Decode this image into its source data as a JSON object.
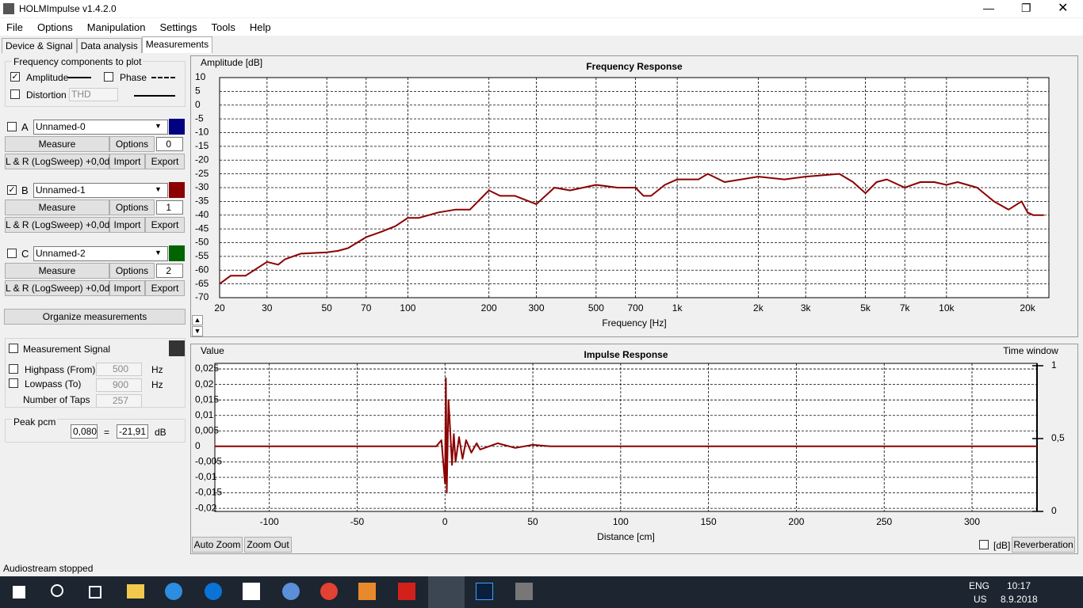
{
  "window": {
    "title": "HOLMImpulse v1.4.2.0"
  },
  "menu": [
    "File",
    "Options",
    "Manipulation",
    "Settings",
    "Tools",
    "Help"
  ],
  "tabs": [
    "Device & Signal",
    "Data analysis",
    "Measurements"
  ],
  "components": {
    "title": "Frequency components to plot",
    "amplitude": "Amplitude",
    "phase": "Phase",
    "distortion": "Distortion",
    "thd": "THD"
  },
  "measurements": [
    {
      "letter": "A",
      "name": "Unnamed-0",
      "color": "#000080",
      "checked": false,
      "measure": "Measure",
      "options": "Options",
      "index": "0",
      "signal": "L & R (LogSweep) +0,0dB",
      "import": "Import",
      "export": "Export"
    },
    {
      "letter": "B",
      "name": "Unnamed-1",
      "color": "#8b0000",
      "checked": true,
      "measure": "Measure",
      "options": "Options",
      "index": "1",
      "signal": "L & R (LogSweep) +0,0dB",
      "import": "Import",
      "export": "Export"
    },
    {
      "letter": "C",
      "name": "Unnamed-2",
      "color": "#006400",
      "checked": false,
      "measure": "Measure",
      "options": "Options",
      "index": "2",
      "signal": "L & R (LogSweep) +0,0dB",
      "import": "Import",
      "export": "Export"
    }
  ],
  "organize": "Organize measurements",
  "signal": {
    "label": "Measurement Signal",
    "highpass": "Highpass (From)",
    "highpass_value": "500",
    "lowpass": "Lowpass (To)",
    "lowpass_value": "900",
    "taps": "Number of Taps",
    "taps_value": "257",
    "hz": "Hz"
  },
  "peak": {
    "label": "Peak pcm",
    "pcm": "0,080",
    "eq": "=",
    "db_value": "-21,91",
    "db": "dB"
  },
  "frequency_chart": {
    "type": "line",
    "title": "Frequency Response",
    "y_label": "Amplitude [dB]",
    "x_label": "Frequency [Hz]",
    "log_x": true,
    "grid": true,
    "xlim": [
      20,
      24000
    ],
    "ylim": [
      -70,
      10
    ],
    "yticks": [
      10,
      5,
      0,
      -5,
      -10,
      -15,
      -20,
      -25,
      -30,
      -35,
      -40,
      -45,
      -50,
      -55,
      -60,
      -65,
      -70
    ],
    "xticks": [
      20,
      30,
      50,
      70,
      100,
      200,
      300,
      500,
      700,
      {
        "value": 1000,
        "label": "1k"
      },
      {
        "value": 2000,
        "label": "2k"
      },
      {
        "value": 3000,
        "label": "3k"
      },
      {
        "value": 5000,
        "label": "5k"
      },
      {
        "value": 7000,
        "label": "7k"
      },
      {
        "value": 10000,
        "label": "10k"
      },
      {
        "value": 20000,
        "label": "20k"
      }
    ],
    "series": [
      {
        "color": "#8b0000",
        "x": [
          20,
          22,
          25,
          30,
          33,
          35,
          40,
          50,
          55,
          60,
          70,
          80,
          90,
          100,
          110,
          130,
          150,
          170,
          200,
          220,
          250,
          300,
          350,
          400,
          500,
          600,
          700,
          750,
          800,
          900,
          1000,
          1200,
          1300,
          1500,
          2000,
          2500,
          3000,
          4000,
          4500,
          5000,
          5500,
          6000,
          7000,
          8000,
          9000,
          10000,
          11000,
          13000,
          15000,
          17000,
          19000,
          20000,
          21000,
          23000
        ],
        "values": [
          -65,
          -62,
          -62,
          -57,
          -58,
          -56,
          -54,
          -53.5,
          -53,
          -52,
          -48,
          -46,
          -44,
          -41,
          -41,
          -39,
          -38,
          -38,
          -31,
          -33,
          -33,
          -36,
          -30,
          -31,
          -29,
          -30,
          -30,
          -33,
          -33,
          -29,
          -27,
          -27,
          -25,
          -28,
          -26,
          -27,
          -26,
          -25,
          -28,
          -32,
          -28,
          -27,
          -30,
          -28,
          -28,
          -29,
          -28,
          -30,
          -35,
          -38,
          -35,
          -39,
          -40,
          -40
        ]
      }
    ]
  },
  "impulse_chart": {
    "type": "line",
    "title": "Impulse Response",
    "y_label": "Value",
    "x_label": "Distance [cm]",
    "y2_label": "Time window",
    "log_x": false,
    "grid": true,
    "xlim": [
      -131,
      337
    ],
    "ylim": [
      -0.021,
      0.0268
    ],
    "y2lim": [
      0,
      1.016
    ],
    "yticks": [
      {
        "value": 0.025,
        "label": "0,025"
      },
      {
        "value": 0.02,
        "label": "0,02"
      },
      {
        "value": 0.015,
        "label": "0,015"
      },
      {
        "value": 0.01,
        "label": "0,01"
      },
      {
        "value": 0.005,
        "label": "0,005"
      },
      0,
      {
        "value": -0.005,
        "label": "-0,005"
      },
      {
        "value": -0.01,
        "label": "-0,01"
      },
      {
        "value": -0.015,
        "label": "-0,015"
      },
      {
        "value": -0.02,
        "label": "-0,02"
      }
    ],
    "y2ticks": [
      1,
      {
        "value": 0.5,
        "label": "0,5"
      },
      0
    ],
    "xticks": [
      -100,
      -50,
      0,
      50,
      100,
      150,
      200,
      250,
      300
    ],
    "series": [
      {
        "color": "#8b0000",
        "x": [
          -131,
          -5,
          -2,
          0,
          0.5,
          1,
          2,
          3,
          4,
          5,
          6,
          8,
          10,
          12,
          15,
          18,
          20,
          30,
          40,
          50,
          60,
          337
        ],
        "values": [
          0,
          0,
          0.002,
          -0.012,
          0.022,
          -0.015,
          0.015,
          0.005,
          -0.006,
          0.004,
          -0.005,
          0.003,
          -0.004,
          0.002,
          -0.002,
          0.001,
          -0.001,
          0.001,
          -0.0005,
          0.0005,
          0,
          0
        ]
      }
    ]
  },
  "buttons": {
    "auto_zoom": "Auto Zoom",
    "zoom_out": "Zoom Out",
    "db": "[dB]",
    "reverberation": "Reverberation"
  },
  "status": "Audiostream stopped",
  "taskbar": {
    "lang": "ENG",
    "region": "US",
    "time": "10:17",
    "date": "8.9.2018"
  }
}
